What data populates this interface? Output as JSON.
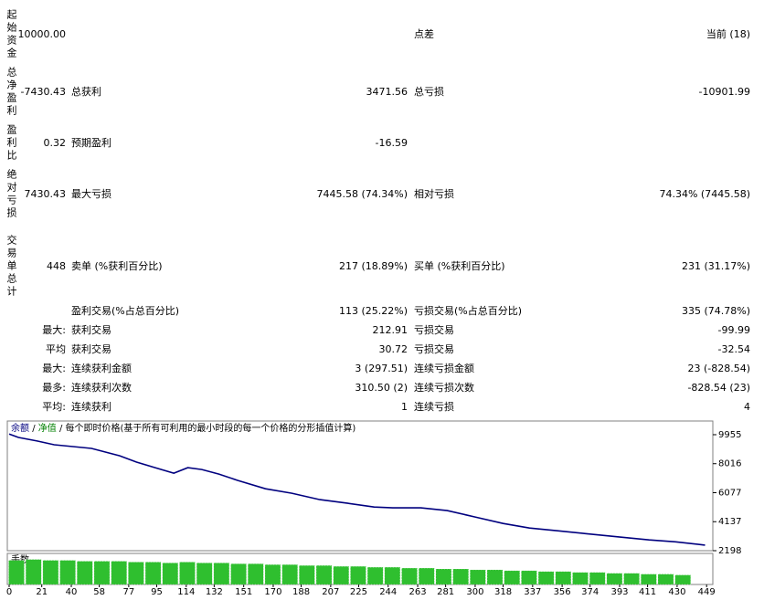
{
  "report": {
    "summary": [
      {
        "label": "起始资金",
        "value": "10000.00",
        "label3": "点差",
        "value3": "当前 (18)"
      },
      {
        "label": "总净盈利",
        "value": "-7430.43",
        "label2": "总获利",
        "value2": "3471.56",
        "label3": "总亏损",
        "value3": "-10901.99"
      },
      {
        "label": "盈利比",
        "value": "0.32",
        "label2": "预期盈利",
        "value2": "-16.59"
      },
      {
        "label": "绝对亏损",
        "value": "7430.43",
        "label2": "最大亏损",
        "value2": "7445.58 (74.34%)",
        "label3": "相对亏损",
        "value3": "74.34% (7445.58)"
      },
      {
        "label": "交易单总计",
        "value": "448",
        "label2": "卖单 (%获利百分比)",
        "value2": "217 (18.89%)",
        "label3": "买单 (%获利百分比)",
        "value3": "231 (31.17%)"
      },
      {
        "label2": "盈利交易(%占总百分比)",
        "value2": "113 (25.22%)",
        "label3": "亏损交易(%占总百分比)",
        "value3": "335 (74.78%)"
      }
    ],
    "extremes": [
      {
        "prefix": "最大:",
        "label2": "获利交易",
        "value2": "212.91",
        "label3": "亏损交易",
        "value3": "-99.99"
      },
      {
        "prefix": "平均",
        "label2": "获利交易",
        "value2": "30.72",
        "label3": "亏损交易",
        "value3": "-32.54"
      },
      {
        "prefix": "最大:",
        "label2": "连续获利金额",
        "value2": "3 (297.51)",
        "label3": "连续亏损金额",
        "value3": "23 (-828.54)"
      },
      {
        "prefix": "最多:",
        "label2": "连续获利次数",
        "value2": "310.50 (2)",
        "label3": "连续亏损次数",
        "value3": "-828.54 (23)"
      },
      {
        "prefix": "平均:",
        "label2": "连续获利",
        "value2": "1",
        "label3": "连续亏损",
        "value3": "4"
      }
    ]
  },
  "chart_data": [
    {
      "type": "line",
      "legend_separator": "/",
      "legend_labels": [
        "净值",
        "每个即时价格(基于所有可利用的最小时段的每一个价格的分形插值计算)"
      ],
      "series": [
        {
          "name": "余额",
          "color": "#00007f",
          "x": [
            0,
            6,
            18,
            29,
            41,
            53,
            71,
            82,
            94,
            106,
            115,
            124,
            135,
            147,
            165,
            182,
            200,
            218,
            235,
            247,
            265,
            282,
            300,
            318,
            335,
            353,
            371,
            394,
            412,
            429,
            448
          ],
          "values": [
            10000,
            9770,
            9530,
            9280,
            9160,
            9040,
            8550,
            8120,
            7750,
            7380,
            7750,
            7630,
            7320,
            6900,
            6340,
            6040,
            5610,
            5370,
            5120,
            5060,
            5060,
            4880,
            4450,
            4020,
            3710,
            3530,
            3340,
            3100,
            2920,
            2790,
            2570
          ]
        }
      ],
      "xlim": [
        0,
        453
      ],
      "xticks": [
        0,
        21,
        40,
        58,
        77,
        95,
        114,
        132,
        151,
        170,
        188,
        207,
        225,
        244,
        263,
        281,
        300,
        318,
        337,
        356,
        374,
        393,
        411,
        430,
        449
      ],
      "ylim": [
        2198,
        10870
      ],
      "yticks": [
        9955,
        8016,
        6077,
        4137,
        2198
      ]
    },
    {
      "type": "bar",
      "title": "手数",
      "color": "#2fbf2f",
      "xlim": [
        0,
        453
      ],
      "ylim": [
        0,
        0.36
      ],
      "x": [
        5,
        16,
        27,
        38,
        49,
        60,
        71,
        82,
        93,
        104,
        115,
        126,
        137,
        148,
        159,
        170,
        181,
        192,
        203,
        214,
        225,
        236,
        247,
        258,
        269,
        280,
        291,
        302,
        313,
        324,
        335,
        346,
        357,
        368,
        379,
        390,
        401,
        412,
        423,
        434
      ],
      "values": [
        0.28,
        0.29,
        0.28,
        0.28,
        0.27,
        0.27,
        0.27,
        0.26,
        0.26,
        0.25,
        0.26,
        0.25,
        0.25,
        0.24,
        0.24,
        0.23,
        0.23,
        0.22,
        0.22,
        0.21,
        0.21,
        0.2,
        0.2,
        0.19,
        0.19,
        0.18,
        0.18,
        0.17,
        0.17,
        0.16,
        0.16,
        0.15,
        0.15,
        0.14,
        0.14,
        0.13,
        0.13,
        0.12,
        0.12,
        0.11
      ]
    }
  ]
}
